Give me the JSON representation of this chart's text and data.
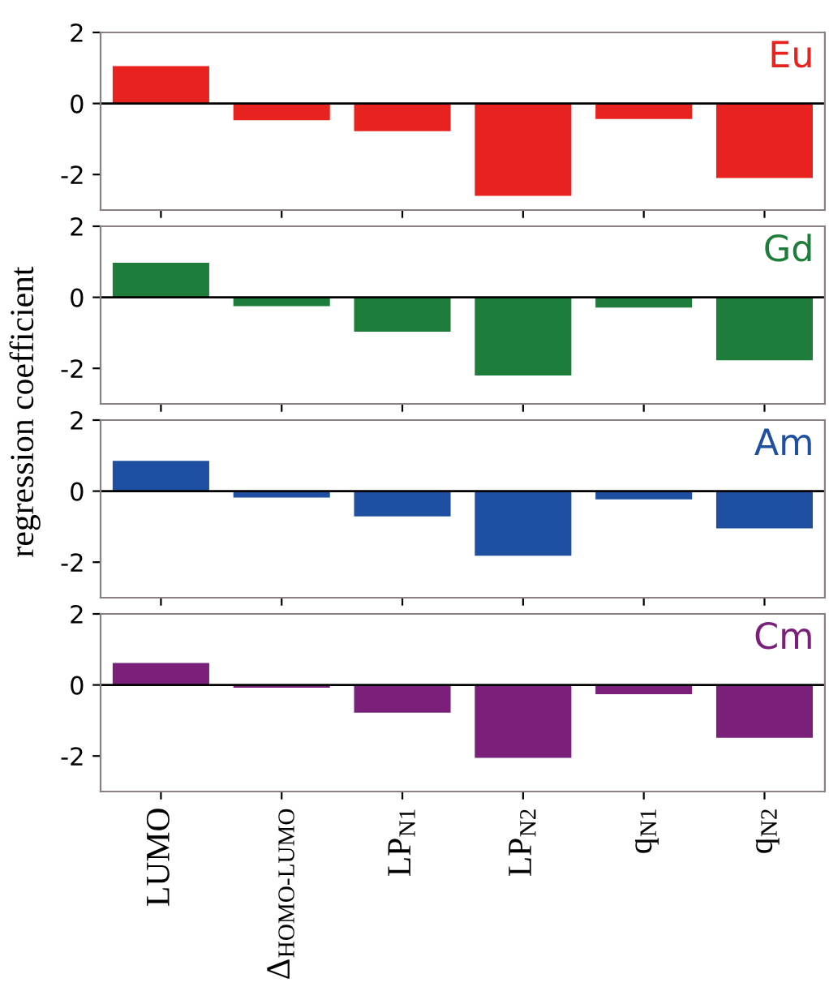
{
  "chart_data": [
    {
      "type": "bar",
      "ylabel": "regression coefficient",
      "categories": [
        null,
        null,
        null,
        null,
        null,
        null
      ],
      "series": [
        {
          "name": "Eu",
          "color": "#e8231f",
          "values": [
            1.05,
            -0.47,
            -0.78,
            -2.6,
            -0.44,
            -2.1
          ]
        }
      ],
      "ylim": [
        -3,
        2
      ],
      "yticks": [
        -2,
        0,
        2
      ],
      "ref_lines": [
        {
          "axis": "y",
          "value": 0,
          "color": "#000000"
        }
      ]
    },
    {
      "type": "bar",
      "categories": [
        null,
        null,
        null,
        null,
        null,
        null
      ],
      "series": [
        {
          "name": "Gd",
          "color": "#1e7d3a",
          "values": [
            0.97,
            -0.25,
            -0.97,
            -2.2,
            -0.29,
            -1.77
          ]
        }
      ],
      "ylim": [
        -3,
        2
      ],
      "yticks": [
        -2,
        0,
        2
      ],
      "ref_lines": [
        {
          "axis": "y",
          "value": 0,
          "color": "#000000"
        }
      ]
    },
    {
      "type": "bar",
      "categories": [
        null,
        null,
        null,
        null,
        null,
        null
      ],
      "series": [
        {
          "name": "Am",
          "color": "#1f4fa0",
          "values": [
            0.85,
            -0.18,
            -0.71,
            -1.82,
            -0.23,
            -1.05
          ]
        }
      ],
      "ylim": [
        -3,
        2
      ],
      "yticks": [
        -2,
        0,
        2
      ],
      "ref_lines": [
        {
          "axis": "y",
          "value": 0,
          "color": "#000000"
        }
      ]
    },
    {
      "type": "bar",
      "categories": [
        "LUMO",
        "Δ$_{HOMO‐LUMO}$",
        "LP$_{N1}$",
        "LP$_{N2}$",
        "q$_{N1}$",
        "q$_{N2}$"
      ],
      "series": [
        {
          "name": "Cm",
          "color": "#7a1f7a",
          "values": [
            0.62,
            -0.08,
            -0.78,
            -2.05,
            -0.26,
            -1.49
          ]
        }
      ],
      "ylim": [
        -3,
        2
      ],
      "yticks": [
        -2,
        0,
        2
      ],
      "ref_lines": [
        {
          "axis": "y",
          "value": 0,
          "color": "#000000"
        }
      ]
    }
  ]
}
